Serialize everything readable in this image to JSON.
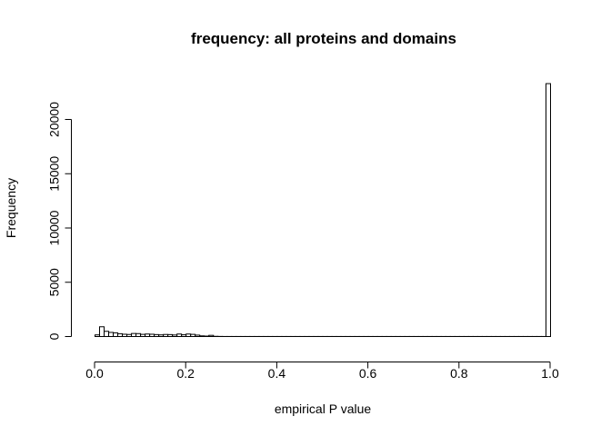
{
  "chart_data": {
    "type": "bar",
    "title": "frequency: all proteins and domains",
    "xlabel": "empirical P value",
    "ylabel": "Frequency",
    "xlim": [
      0,
      1
    ],
    "ylim": [
      0,
      23300
    ],
    "x_ticks": [
      0.0,
      0.2,
      0.4,
      0.6,
      0.8,
      1.0
    ],
    "x_tick_labels": [
      "0.0",
      "0.2",
      "0.4",
      "0.6",
      "0.8",
      "1.0"
    ],
    "y_ticks": [
      0,
      5000,
      10000,
      15000,
      20000
    ],
    "y_tick_labels": [
      "0",
      "5000",
      "10000",
      "15000",
      "20000"
    ],
    "bin_width": 0.01,
    "bin_starts": [
      0.0,
      0.01,
      0.02,
      0.03,
      0.04,
      0.05,
      0.06,
      0.07,
      0.08,
      0.09,
      0.1,
      0.11,
      0.12,
      0.13,
      0.14,
      0.15,
      0.16,
      0.17,
      0.18,
      0.19,
      0.2,
      0.21,
      0.22,
      0.23,
      0.24,
      0.25,
      0.26,
      0.27,
      0.28,
      0.29,
      0.3,
      0.31,
      0.32,
      0.33,
      0.34,
      0.35,
      0.36,
      0.37,
      0.38,
      0.39,
      0.4,
      0.41,
      0.42,
      0.43,
      0.44,
      0.45,
      0.46,
      0.47,
      0.48,
      0.49,
      0.5,
      0.51,
      0.52,
      0.53,
      0.54,
      0.55,
      0.56,
      0.57,
      0.58,
      0.59,
      0.6,
      0.61,
      0.62,
      0.63,
      0.64,
      0.65,
      0.66,
      0.67,
      0.68,
      0.69,
      0.7,
      0.71,
      0.72,
      0.73,
      0.74,
      0.75,
      0.76,
      0.77,
      0.78,
      0.79,
      0.8,
      0.81,
      0.82,
      0.83,
      0.84,
      0.85,
      0.86,
      0.87,
      0.88,
      0.89,
      0.9,
      0.91,
      0.92,
      0.93,
      0.94,
      0.95,
      0.96,
      0.97,
      0.98,
      0.99
    ],
    "values": [
      150,
      900,
      480,
      380,
      340,
      260,
      210,
      190,
      280,
      270,
      200,
      230,
      210,
      180,
      150,
      190,
      180,
      140,
      230,
      160,
      230,
      200,
      130,
      60,
      40,
      110,
      20,
      10,
      5,
      5,
      5,
      5,
      5,
      5,
      5,
      5,
      5,
      5,
      5,
      5,
      5,
      5,
      5,
      5,
      5,
      5,
      5,
      5,
      5,
      5,
      5,
      5,
      5,
      5,
      5,
      5,
      5,
      5,
      5,
      5,
      5,
      5,
      5,
      5,
      5,
      5,
      5,
      5,
      5,
      5,
      5,
      5,
      5,
      5,
      5,
      5,
      5,
      5,
      5,
      5,
      5,
      5,
      5,
      5,
      5,
      5,
      5,
      5,
      5,
      5,
      5,
      5,
      5,
      5,
      5,
      5,
      5,
      5,
      5,
      23300
    ]
  }
}
